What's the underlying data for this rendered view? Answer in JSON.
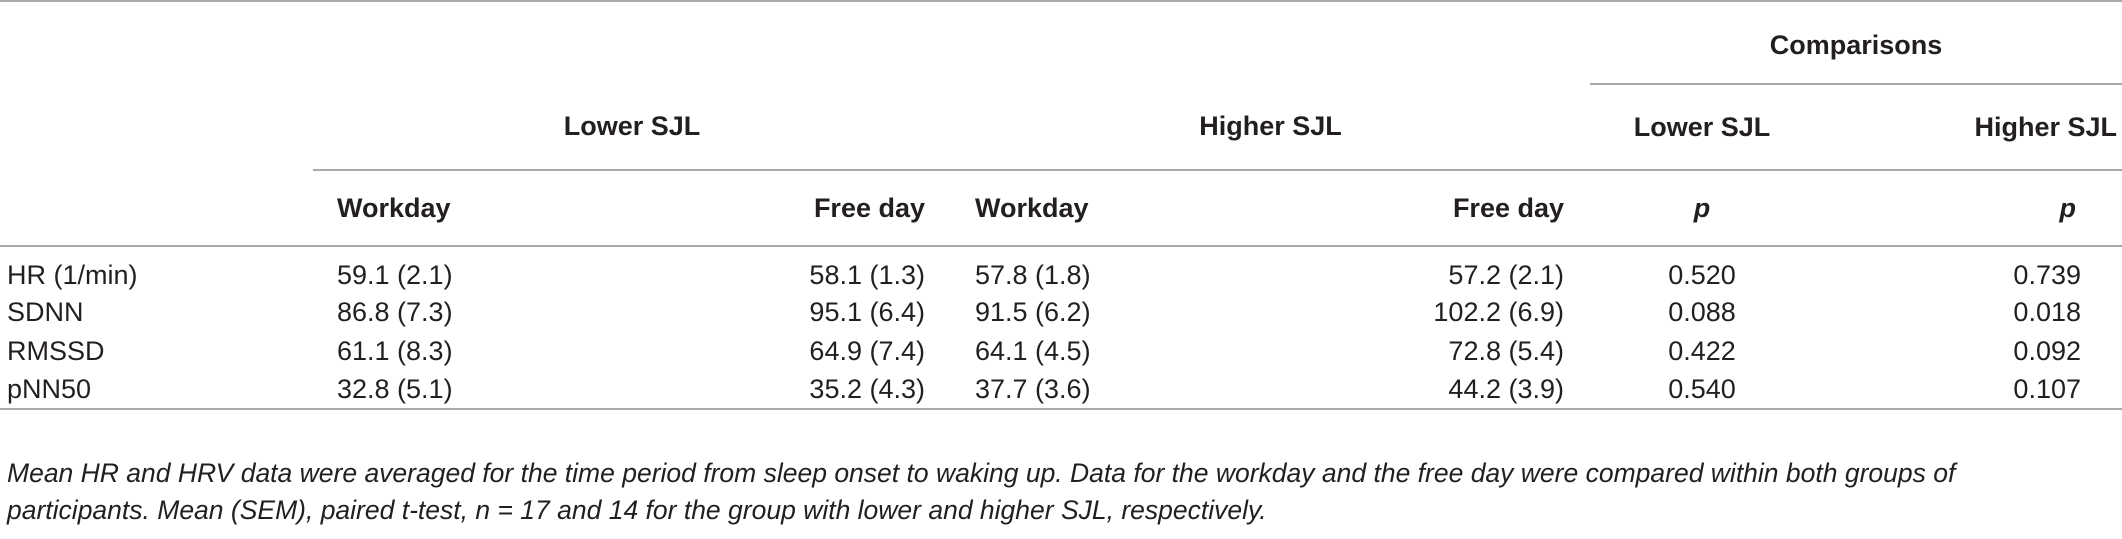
{
  "table": {
    "group_headers": {
      "comparisons": "Comparisons",
      "lower_sjl": "Lower SJL",
      "higher_sjl": "Higher SJL",
      "comp_lower_sjl": "Lower SJL",
      "comp_higher_sjl": "Higher SJL"
    },
    "sub_headers": {
      "lower_workday": "Workday",
      "lower_freeday": "Free day",
      "higher_workday": "Workday",
      "higher_freeday": "Free day",
      "p_lower": "p",
      "p_higher": "p"
    },
    "rows": [
      {
        "label": "HR (1/min)",
        "lw": "59.1 (2.1)",
        "lf": "58.1 (1.3)",
        "hw": "57.8 (1.8)",
        "hf": "57.2 (2.1)",
        "pl": "0.520",
        "ph": "0.739"
      },
      {
        "label": "SDNN",
        "lw": "86.8 (7.3)",
        "lf": "95.1 (6.4)",
        "hw": "91.5 (6.2)",
        "hf": "102.2 (6.9)",
        "pl": "0.088",
        "ph": "0.018"
      },
      {
        "label": "RMSSD",
        "lw": "61.1 (8.3)",
        "lf": "64.9 (7.4)",
        "hw": "64.1 (4.5)",
        "hf": "72.8 (5.4)",
        "pl": "0.422",
        "ph": "0.092"
      },
      {
        "label": "pNN50",
        "lw": "32.8 (5.1)",
        "lf": "35.2 (4.3)",
        "hw": "37.7 (3.6)",
        "hf": "44.2 (3.9)",
        "pl": "0.540",
        "ph": "0.107"
      }
    ]
  },
  "footnote": {
    "line1": "Mean HR and HRV data were averaged for the time period from sleep onset to waking up. Data for the workday and the free day were compared within both groups of",
    "line2_a": "participants. Mean (SEM), paired t-test, ",
    "line2_n": "n",
    "line2_b": " = 17 and 14 for the group with lower and higher SJL, respectively."
  }
}
